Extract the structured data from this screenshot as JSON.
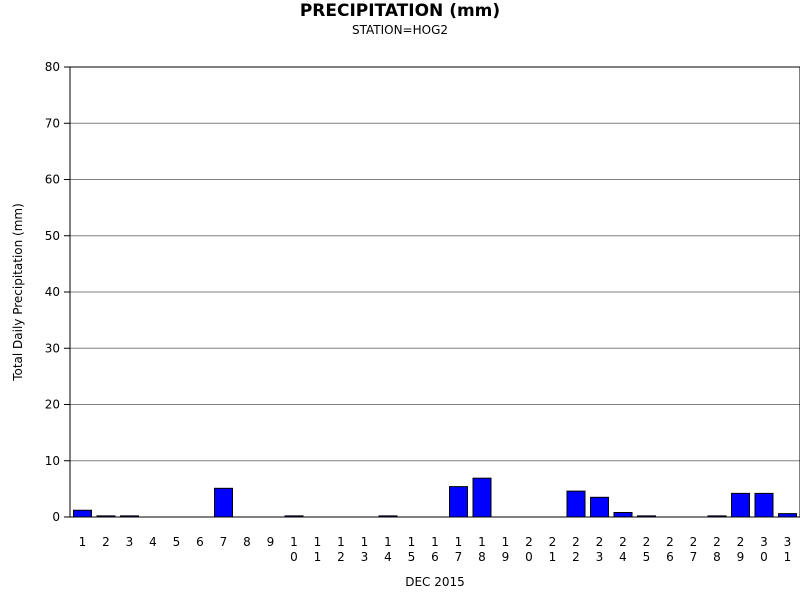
{
  "chart_data": {
    "type": "bar",
    "title": "PRECIPITATION (mm)",
    "subtitle": "STATION=HOG2",
    "xlabel": "DEC 2015",
    "ylabel": "Total Daily Precipitation (mm)",
    "ylim": [
      0,
      80
    ],
    "yticks": [
      0,
      10,
      20,
      30,
      40,
      50,
      60,
      70,
      80
    ],
    "grid": true,
    "bar_color": "#0000ff",
    "categories": [
      "1",
      "2",
      "3",
      "4",
      "5",
      "6",
      "7",
      "8",
      "9",
      "10",
      "11",
      "12",
      "13",
      "14",
      "15",
      "16",
      "17",
      "18",
      "19",
      "20",
      "21",
      "22",
      "23",
      "24",
      "25",
      "26",
      "27",
      "28",
      "29",
      "30",
      "31"
    ],
    "values": [
      1.2,
      0.2,
      0.2,
      0,
      0,
      0,
      5.1,
      0,
      0,
      0.2,
      0,
      0,
      0,
      0.2,
      0,
      0,
      5.4,
      6.9,
      0,
      0,
      0,
      4.6,
      3.5,
      0.8,
      0.2,
      0,
      0,
      0.2,
      4.2,
      4.2,
      0.6
    ]
  }
}
